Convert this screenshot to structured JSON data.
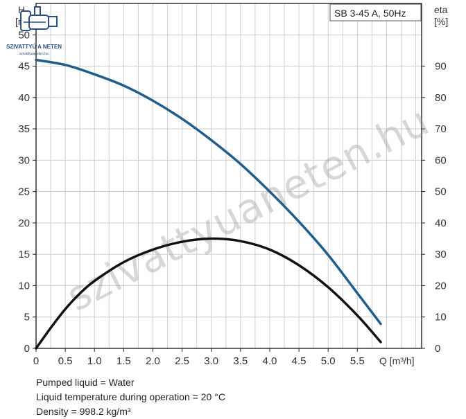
{
  "logo": {
    "name": "SZIVATTYÚ A NETEN",
    "url": "szivattyuaneten.hu"
  },
  "watermark": "szivattyuaneten.hu",
  "footer": {
    "lines": [
      "Pumped liquid = Water",
      "Liquid temperature during operation = 20 °C",
      "Density = 998.2 kg/m³"
    ]
  },
  "chart_data": {
    "type": "line",
    "title": "SB 3-45 A, 50Hz",
    "left_axis": {
      "label_top": "H",
      "label_unit": "[m]",
      "range": [
        0,
        55
      ],
      "ticks": [
        0,
        5,
        10,
        15,
        20,
        25,
        30,
        35,
        40,
        45,
        50
      ]
    },
    "right_axis": {
      "label_top": "eta",
      "label_unit": "[%]",
      "range": [
        0,
        110
      ],
      "ticks": [
        0,
        10,
        20,
        30,
        40,
        50,
        60,
        70,
        80,
        90
      ]
    },
    "x_axis": {
      "label": "Q [m³/h]",
      "range": [
        0,
        6.6
      ],
      "ticks": [
        0,
        0.5,
        1.0,
        1.5,
        2.0,
        2.5,
        3.0,
        3.5,
        4.0,
        4.5,
        5.0,
        5.5
      ],
      "tick_labels": [
        "0",
        "0.5",
        "1.0",
        "1.5",
        "2.0",
        "2.5",
        "3.0",
        "3.5",
        "4.0",
        "4.5",
        "5.0",
        "5.5"
      ]
    },
    "grid": true,
    "series": [
      {
        "axis": "left",
        "color": "#1f5d8c",
        "x": [
          0,
          0.5,
          1.0,
          1.5,
          2.0,
          2.5,
          3.0,
          3.5,
          4.0,
          4.5,
          5.0,
          5.5,
          5.9
        ],
        "y": [
          46,
          45.2,
          43.7,
          41.9,
          39.5,
          36.6,
          33.2,
          29.4,
          25.0,
          20.2,
          14.9,
          8.8,
          3.9
        ]
      },
      {
        "axis": "right",
        "color": "#111111",
        "x": [
          0,
          0.25,
          0.5,
          0.75,
          1.0,
          1.5,
          2.0,
          2.5,
          3.0,
          3.5,
          4.0,
          4.5,
          5.0,
          5.5,
          5.9
        ],
        "y": [
          0,
          6.5,
          12.5,
          17.5,
          21.5,
          27.5,
          31.5,
          34.0,
          35.0,
          34.2,
          31.5,
          26.5,
          19.5,
          10.5,
          2.0
        ]
      }
    ]
  }
}
